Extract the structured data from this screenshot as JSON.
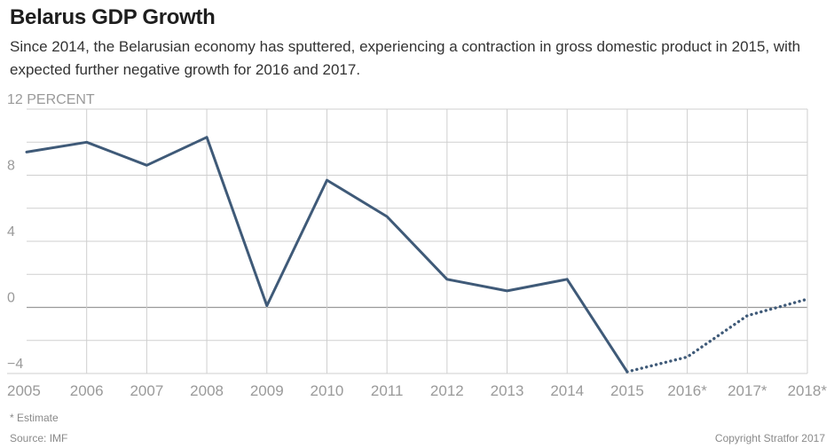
{
  "title": "Belarus GDP Growth",
  "subtitle": "Since 2014, the Belarusian economy has sputtered, experiencing a contraction in gross domestic product in 2015, with expected further negative growth for 2016 and 2017.",
  "footnote": "* Estimate",
  "source": "Source: IMF",
  "copyright": "Copyright Stratfor 2017",
  "colors": {
    "line": "#3f5a78",
    "grid": "#cfcfcf",
    "zero": "#9a9a9a",
    "tick": "#9a9a9a"
  },
  "chart_data": {
    "type": "line",
    "title": "Belarus GDP Growth",
    "ylabel": "PERCENT",
    "x": [
      "2005",
      "2006",
      "2007",
      "2008",
      "2009",
      "2010",
      "2011",
      "2012",
      "2013",
      "2014",
      "2015",
      "2016*",
      "2017*",
      "2018*"
    ],
    "y_ticks": [
      {
        "value": 12,
        "label": "12 PERCENT"
      },
      {
        "value": 8,
        "label": "8"
      },
      {
        "value": 4,
        "label": "4"
      },
      {
        "value": 0,
        "label": "0"
      },
      {
        "value": -4,
        "label": "−4"
      }
    ],
    "ylim": [
      -4,
      12
    ],
    "grid": true,
    "series": [
      {
        "style": "solid",
        "values": [
          9.4,
          10.0,
          8.6,
          10.3,
          0.1,
          7.7,
          5.5,
          1.7,
          1.0,
          1.7,
          -3.9,
          null,
          null,
          null
        ]
      },
      {
        "style": "dotted",
        "values": [
          null,
          null,
          null,
          null,
          null,
          null,
          null,
          null,
          null,
          null,
          -3.9,
          -3.0,
          -0.5,
          0.5
        ]
      }
    ]
  }
}
